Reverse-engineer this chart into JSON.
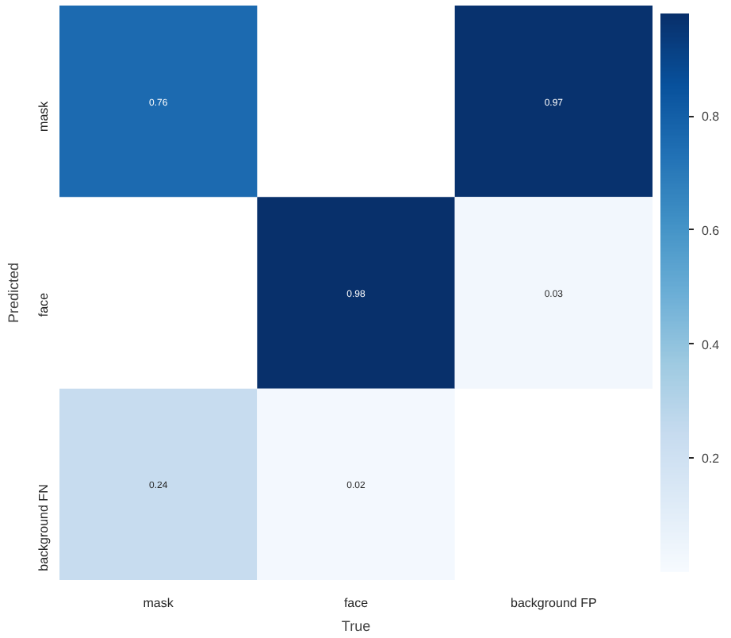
{
  "chart_data": {
    "type": "heatmap",
    "xlabel": "True",
    "ylabel": "Predicted",
    "categories": [
      "mask",
      "face",
      "background FP"
    ],
    "y_categories": [
      "mask",
      "face",
      "background FN"
    ],
    "cells": [
      [
        0.76,
        null,
        0.97
      ],
      [
        null,
        0.98,
        0.03
      ],
      [
        0.24,
        0.02,
        null
      ]
    ],
    "data_labels": true,
    "clim": [
      0,
      0.98
    ],
    "cticks": [
      0.2,
      0.4,
      0.6,
      0.8
    ]
  }
}
